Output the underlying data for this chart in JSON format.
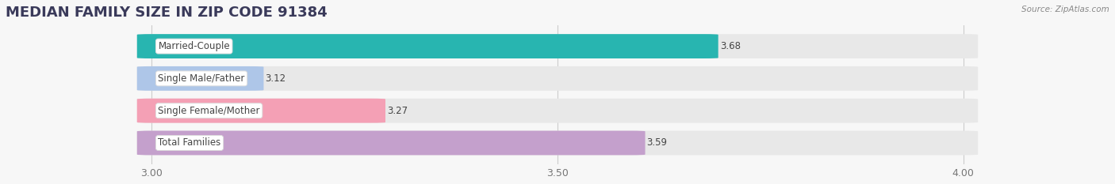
{
  "title": "MEDIAN FAMILY SIZE IN ZIP CODE 91384",
  "source": "Source: ZipAtlas.com",
  "categories": [
    "Married-Couple",
    "Single Male/Father",
    "Single Female/Mother",
    "Total Families"
  ],
  "values": [
    3.68,
    3.12,
    3.27,
    3.59
  ],
  "bar_colors": [
    "#28b5b0",
    "#aec6e8",
    "#f4a0b5",
    "#c4a0cc"
  ],
  "container_color": "#e8e8e8",
  "xlim_data": [
    3.0,
    4.0
  ],
  "xlim_display": [
    2.82,
    4.18
  ],
  "xticks": [
    3.0,
    3.5,
    4.0
  ],
  "xtick_labels": [
    "3.00",
    "3.50",
    "4.00"
  ],
  "bar_height": 0.72,
  "figsize": [
    14.06,
    2.33
  ],
  "dpi": 100,
  "title_fontsize": 13,
  "label_fontsize": 8.5,
  "value_fontsize": 8.5,
  "tick_fontsize": 9,
  "background_color": "#f7f7f7",
  "title_color": "#3a3a5a",
  "label_color": "#444444",
  "value_color_on_bar": "#ffffff",
  "value_color_off_bar": "#555555",
  "grid_color": "#cccccc",
  "source_color": "#888888"
}
